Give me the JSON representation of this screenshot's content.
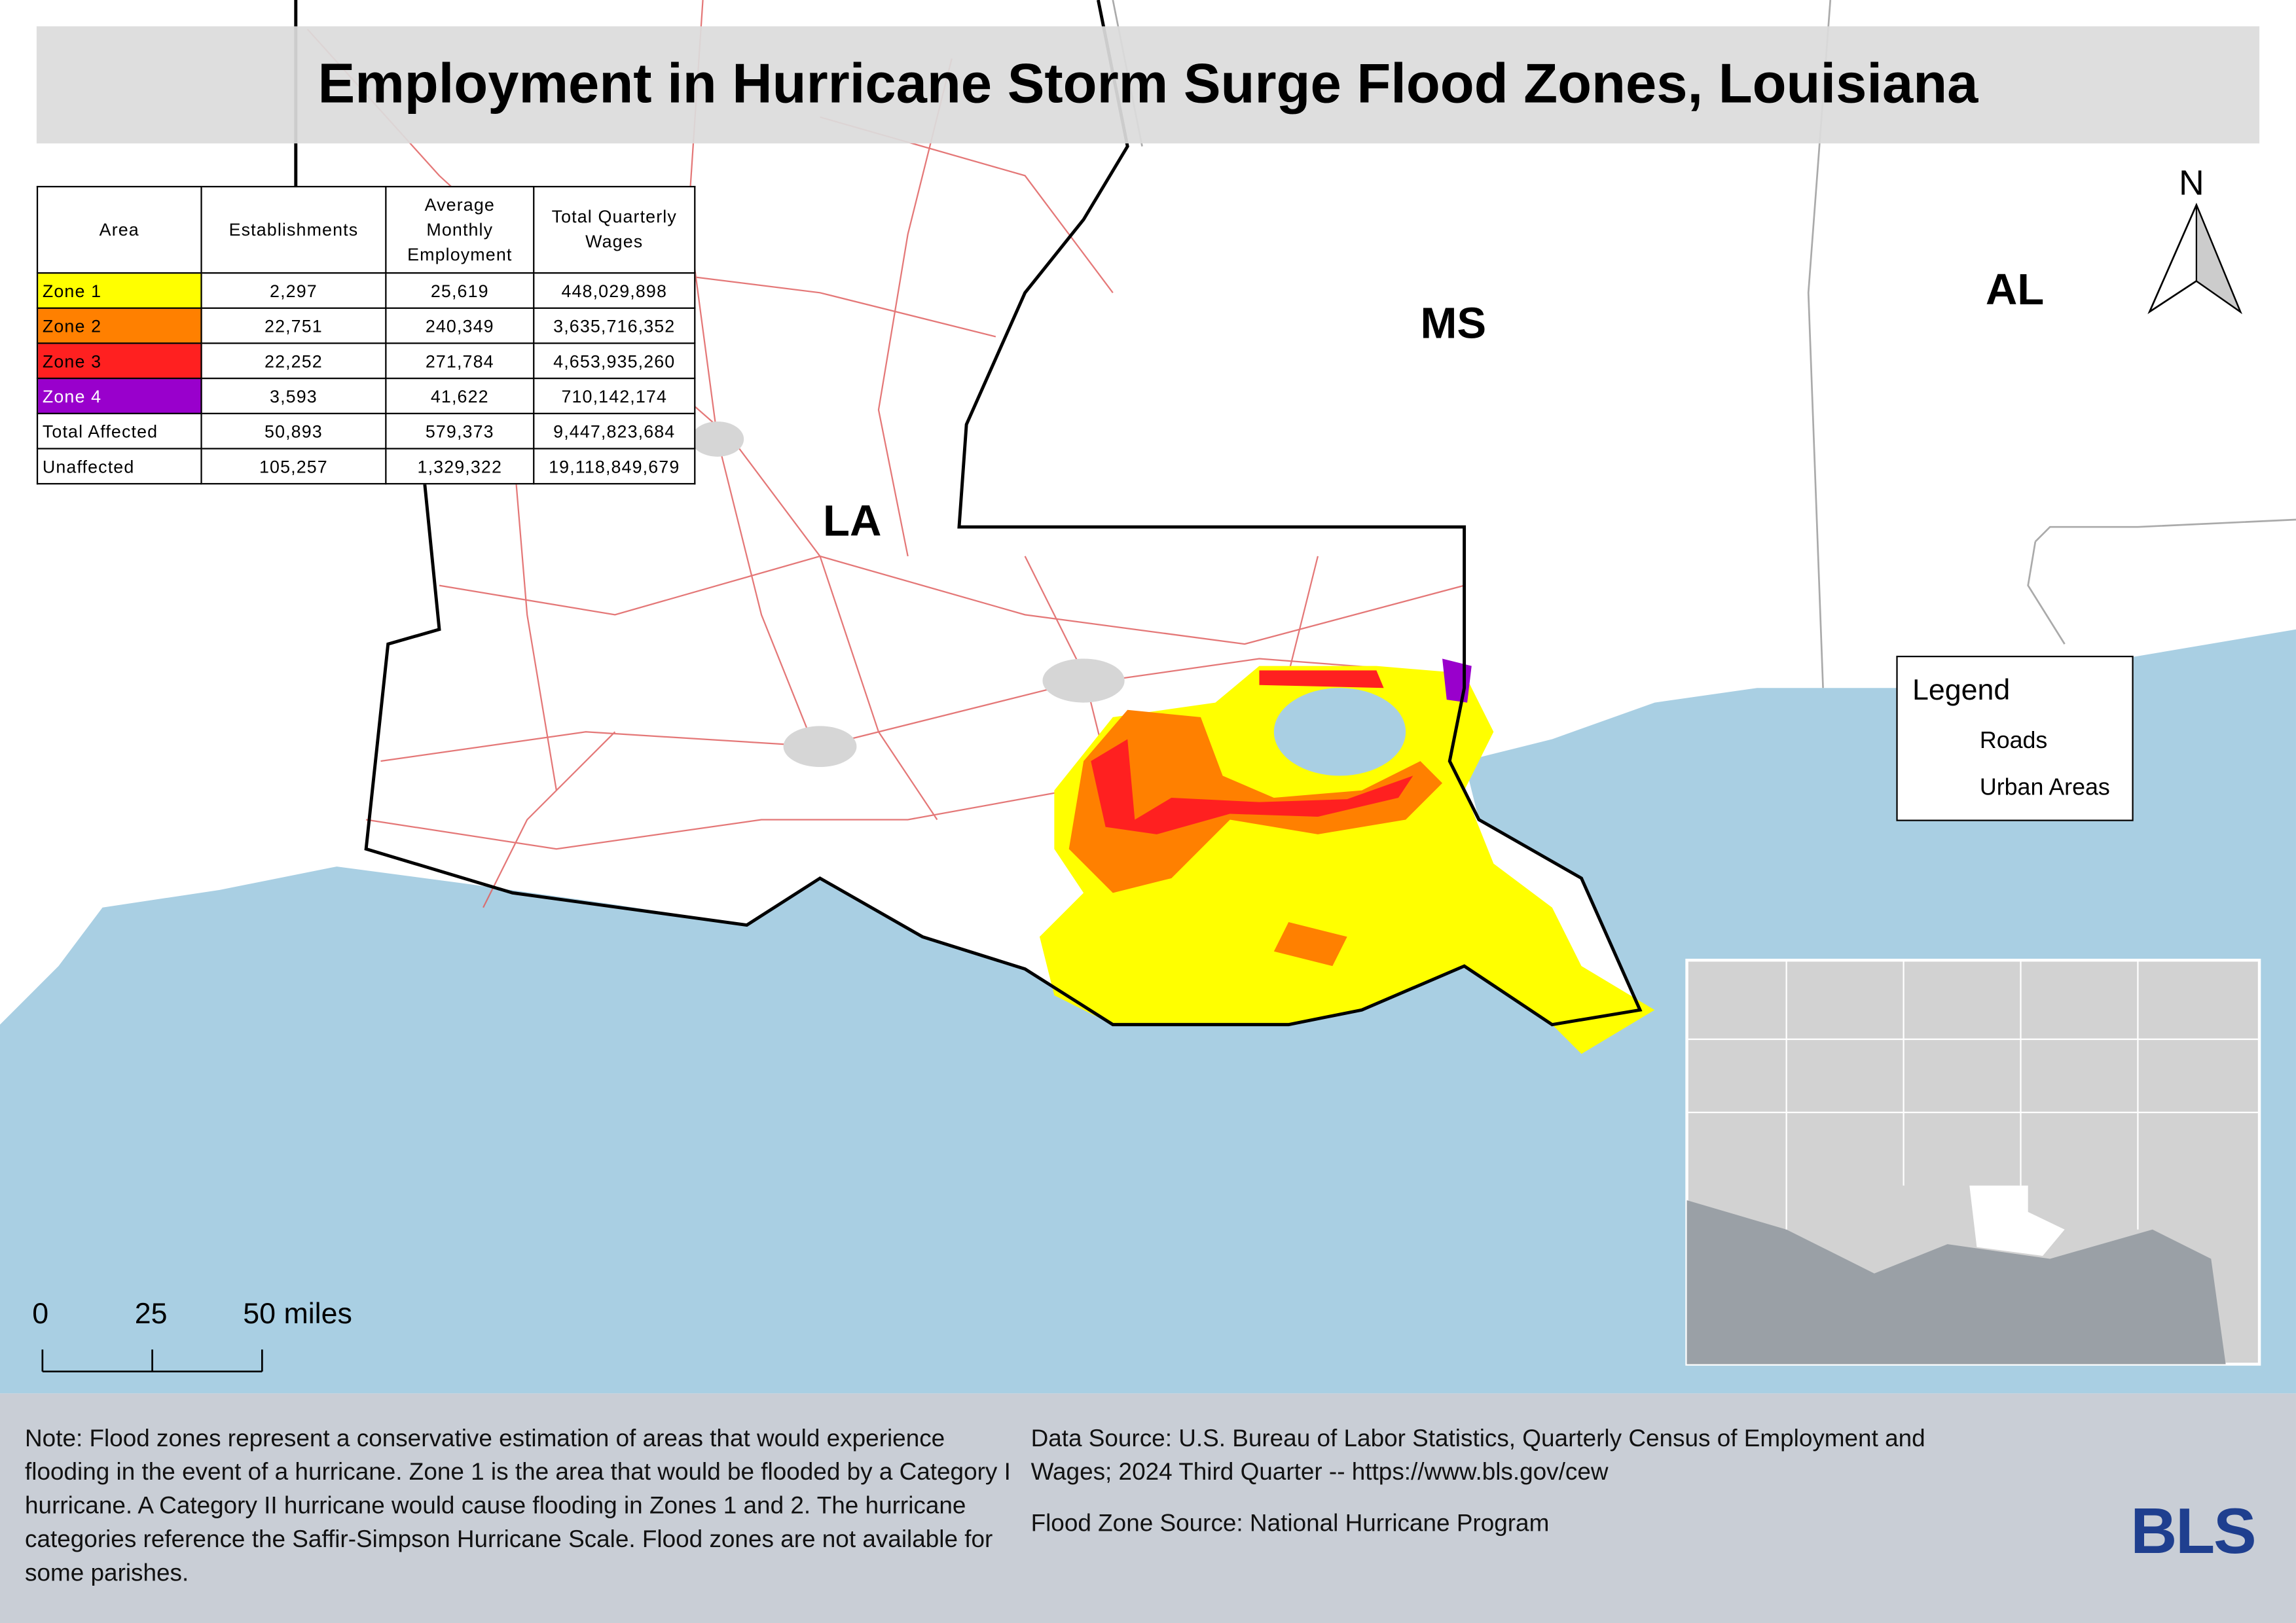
{
  "header": {
    "title": "Employment in Hurricane Storm Surge Flood Zones, Louisiana"
  },
  "table": {
    "columns": [
      "Area",
      "Establishments",
      "Average Monthly Employment",
      "Total Quarterly Wages"
    ],
    "rows": [
      [
        "Zone 1",
        "2,297",
        "25,619",
        "448,029,898"
      ],
      [
        "Zone 2",
        "22,751",
        "240,349",
        "3,635,716,352"
      ],
      [
        "Zone 3",
        "22,252",
        "271,784",
        "4,653,935,260"
      ],
      [
        "Zone 4",
        "3,593",
        "41,622",
        "710,142,174"
      ],
      [
        "Total Affected",
        "50,893",
        "579,373",
        "9,447,823,684"
      ],
      [
        "Unaffected",
        "105,257",
        "1,329,322",
        "19,118,849,679"
      ]
    ]
  },
  "map_labels": {
    "ms": "MS",
    "al": "AL",
    "la": "LA"
  },
  "north_arrow": "N",
  "legend": {
    "title": "Legend",
    "items": [
      "Roads",
      "Urban Areas"
    ]
  },
  "scale_bar": {
    "labels": [
      "0",
      "25",
      "50 miles"
    ]
  },
  "footer": {
    "note": "Note: Flood zones represent a conservative estimation of areas that would experience flooding in the event of a hurricane. Zone 1 is the area that would be flooded by a Category I hurricane. A Category II hurricane would cause flooding in Zones 1 and 2. The hurricane categories reference the Saffir-Simpson Hurricane Scale. Flood zones are not available for some parishes.",
    "data_source": "Data Source: U.S. Bureau of Labor Statistics, Quarterly Census of Employment and Wages; 2024 Third Quarter -- https://www.bls.gov/cew",
    "flood_zone_source": "Flood Zone Source: National Hurricane Program"
  },
  "logo": "BLS"
}
